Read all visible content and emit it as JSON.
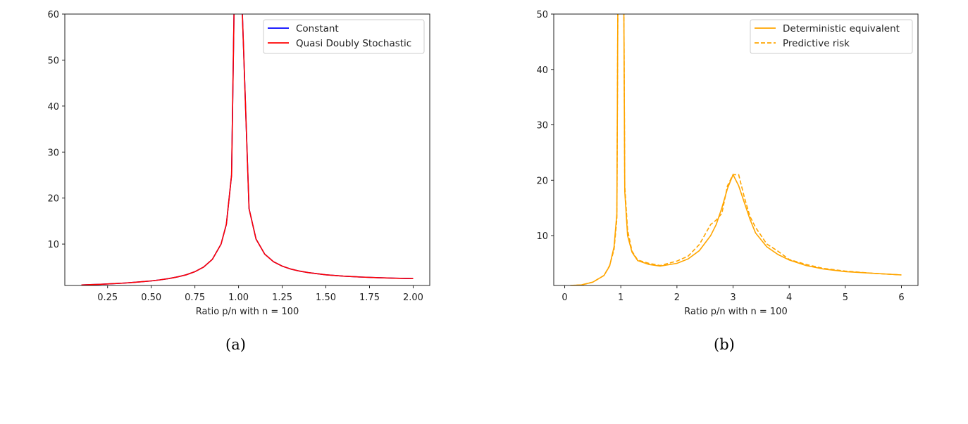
{
  "chart_data": [
    {
      "type": "line",
      "caption": "(a)",
      "xlabel": "Ratio p/n with n = 100",
      "ylabel": "",
      "xlim": [
        0.005,
        2.095
      ],
      "ylim": [
        1,
        60
      ],
      "xticks": [
        "0.25",
        "0.50",
        "0.75",
        "1.00",
        "1.25",
        "1.50",
        "1.75",
        "2.00"
      ],
      "yticks": [
        "10",
        "20",
        "30",
        "40",
        "50",
        "60"
      ],
      "grid": false,
      "legend_position": "top-right",
      "x": [
        0.1,
        0.15,
        0.2,
        0.25,
        0.3,
        0.35,
        0.4,
        0.45,
        0.5,
        0.55,
        0.6,
        0.65,
        0.7,
        0.75,
        0.8,
        0.85,
        0.9,
        0.93,
        0.96,
        0.99,
        1.015,
        1.06,
        1.1,
        1.15,
        1.2,
        1.25,
        1.3,
        1.35,
        1.4,
        1.5,
        1.6,
        1.7,
        1.8,
        1.9,
        2.0
      ],
      "series": [
        {
          "name": "Constant",
          "color": "#0000ff",
          "style": "solid",
          "values": [
            1.11,
            1.18,
            1.25,
            1.33,
            1.43,
            1.54,
            1.67,
            1.82,
            2.0,
            2.22,
            2.5,
            2.86,
            3.33,
            4.0,
            5.0,
            6.67,
            10.0,
            14.3,
            25.0,
            100,
            67.7,
            17.7,
            11.1,
            7.8,
            6.17,
            5.2,
            4.56,
            4.12,
            3.79,
            3.33,
            3.04,
            2.84,
            2.69,
            2.58,
            2.5
          ]
        },
        {
          "name": "Quasi Doubly Stochastic",
          "color": "#ff0000",
          "style": "solid",
          "values": [
            1.11,
            1.18,
            1.25,
            1.33,
            1.43,
            1.54,
            1.67,
            1.82,
            2.0,
            2.22,
            2.5,
            2.86,
            3.33,
            4.0,
            5.0,
            6.67,
            10.0,
            14.3,
            25.0,
            100,
            67.7,
            17.7,
            11.1,
            7.8,
            6.17,
            5.2,
            4.56,
            4.12,
            3.79,
            3.33,
            3.04,
            2.84,
            2.69,
            2.58,
            2.5
          ]
        }
      ]
    },
    {
      "type": "line",
      "caption": "(b)",
      "xlabel": "Ratio p/n with n = 100",
      "ylabel": "",
      "xlim": [
        -0.195,
        6.295
      ],
      "ylim": [
        1,
        50
      ],
      "xticks": [
        "0",
        "1",
        "2",
        "3",
        "4",
        "5",
        "6"
      ],
      "yticks": [
        "10",
        "20",
        "30",
        "40",
        "50"
      ],
      "grid": false,
      "legend_position": "top-right",
      "x": [
        0.1,
        0.3,
        0.5,
        0.7,
        0.8,
        0.88,
        0.93,
        0.96,
        1.04,
        1.07,
        1.12,
        1.2,
        1.3,
        1.5,
        1.7,
        2.0,
        2.2,
        2.4,
        2.6,
        2.7,
        2.8,
        2.9,
        3.0,
        3.1,
        3.2,
        3.3,
        3.4,
        3.6,
        3.8,
        4.0,
        4.3,
        4.6,
        5.0,
        5.5,
        6.0
      ],
      "series": [
        {
          "name": "Deterministic equivalent",
          "color": "#ffa500",
          "style": "solid",
          "values": [
            1.0,
            1.1,
            1.6,
            2.8,
            4.5,
            8,
            14,
            80,
            80,
            18,
            10,
            7,
            5.5,
            4.8,
            4.5,
            5.0,
            5.8,
            7.3,
            10,
            12,
            15,
            18.5,
            21,
            19,
            16,
            13,
            10.5,
            8,
            6.6,
            5.6,
            4.6,
            4.0,
            3.5,
            3.2,
            2.9
          ]
        },
        {
          "name": "Predictive risk",
          "color": "#ffa500",
          "style": "dashed",
          "values": [
            1.0,
            1.1,
            1.6,
            2.8,
            4.6,
            7.5,
            13,
            80,
            80,
            19,
            11,
            7.2,
            5.6,
            5.0,
            4.6,
            5.4,
            6.3,
            8.4,
            12,
            12.8,
            14,
            19,
            21,
            21,
            17,
            13.5,
            11.5,
            8.5,
            7.2,
            5.7,
            4.8,
            4.1,
            3.6,
            3.2,
            2.9
          ]
        }
      ]
    }
  ]
}
